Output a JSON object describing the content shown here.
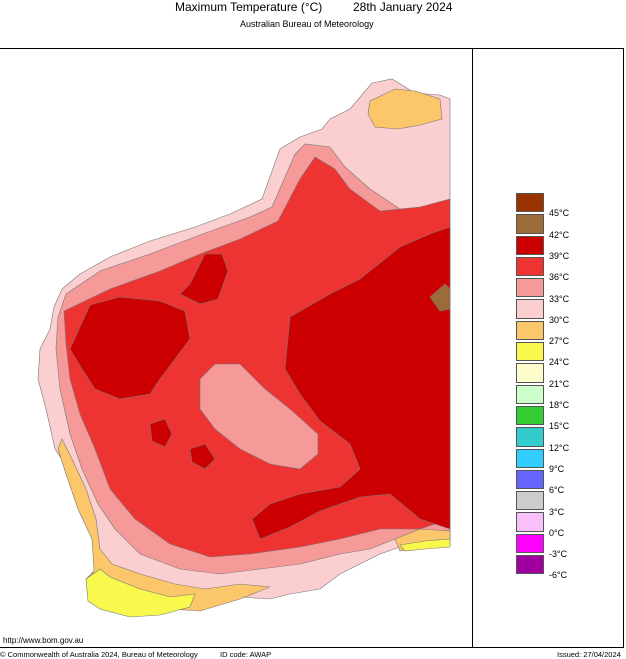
{
  "header": {
    "title": "Maximum Temperature (°C)",
    "date": "28th January 2024",
    "subtitle": "Australian Bureau of Meteorology"
  },
  "legend": {
    "labels": [
      "45°C",
      "42°C",
      "39°C",
      "36°C",
      "33°C",
      "30°C",
      "27°C",
      "24°C",
      "21°C",
      "18°C",
      "15°C",
      "12°C",
      "9°C",
      "6°C",
      "3°C",
      "0°C",
      "-3°C",
      "-6°C"
    ],
    "colors": [
      "#993300",
      "#9b6b3a",
      "#cc0000",
      "#ee3333",
      "#f59999",
      "#fbcfcf",
      "#fcc66b",
      "#f9f94d",
      "#fdfdcc",
      "#ccffcc",
      "#33cc33",
      "#33cccc",
      "#33ccff",
      "#6666ff",
      "#cccccc",
      "#f9bff9",
      "#ff00ff",
      "#a100a1"
    ]
  },
  "footer": {
    "url": "http://www.bom.gov.au",
    "copyright": "© Commonwealth of Australia 2024, Bureau of Meteorology",
    "id_code": "ID code: AWAP",
    "issued": "Issued: 27/04/2024"
  }
}
